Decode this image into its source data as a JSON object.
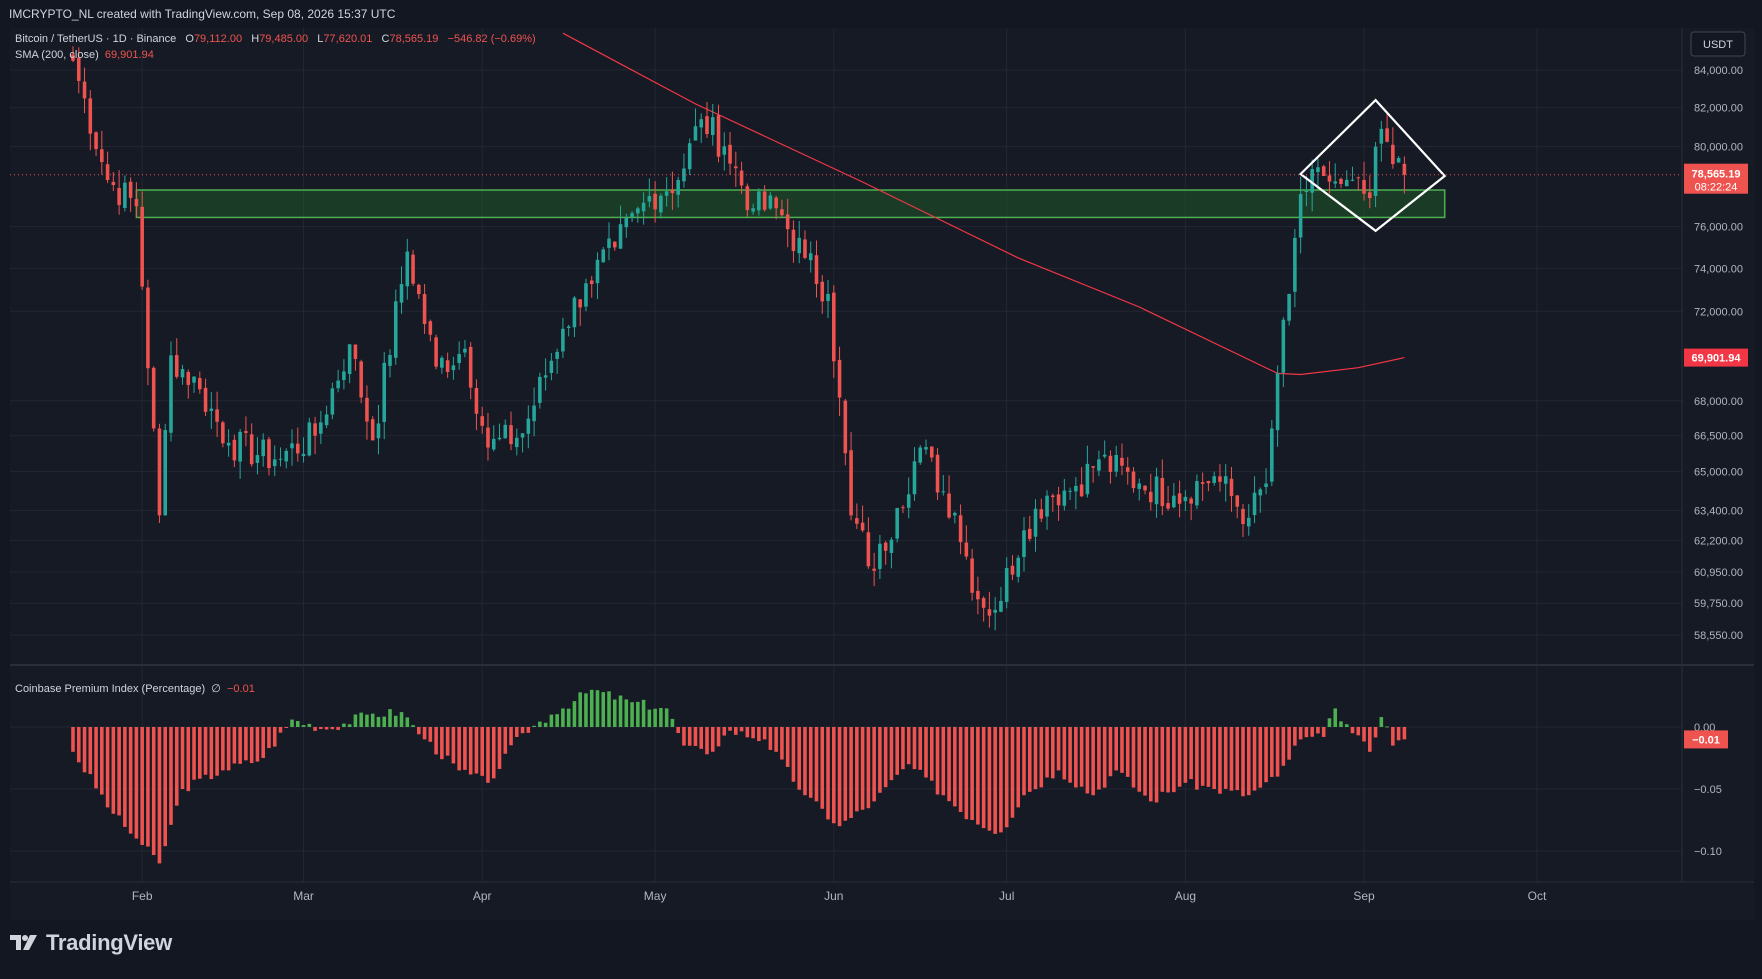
{
  "header": {
    "credit": "IMCRYPTO_NL created with TradingView.com, Sep 08, 2026 15:37 UTC"
  },
  "legend": {
    "symbol": "Bitcoin / TetherUS · 1D · Binance",
    "o_label": "O",
    "o_value": "79,112.00",
    "h_label": "H",
    "h_value": "79,485.00",
    "l_label": "L",
    "l_value": "77,620.01",
    "c_label": "C",
    "c_value": "78,565.19",
    "change": "−546.82 (−0.69%)",
    "sma_label": "SMA (200, close)",
    "sma_value": "69,901.94"
  },
  "indicator": {
    "label": "Coinbase Premium Index (Percentage)",
    "symbol": "∅",
    "value": "−0.01"
  },
  "price_axis": {
    "currency": "USDT",
    "ticks": [
      {
        "label": "84,000.00",
        "value": 84000
      },
      {
        "label": "82,000.00",
        "value": 82000
      },
      {
        "label": "80,000.00",
        "value": 80000
      },
      {
        "label": "76,000.00",
        "value": 76000
      },
      {
        "label": "74,000.00",
        "value": 74000
      },
      {
        "label": "72,000.00",
        "value": 72000
      },
      {
        "label": "68,000.00",
        "value": 68000
      },
      {
        "label": "66,500.00",
        "value": 66500
      },
      {
        "label": "65,000.00",
        "value": 65000
      },
      {
        "label": "63,400.00",
        "value": 63400
      },
      {
        "label": "62,200.00",
        "value": 62200
      },
      {
        "label": "60,950.00",
        "value": 60950
      },
      {
        "label": "59,750.00",
        "value": 59750
      },
      {
        "label": "58,550.00",
        "value": 58550
      }
    ],
    "last_price_label": "78,565.19",
    "countdown": "08:22:24",
    "sma_label": "69,901.94"
  },
  "premium_axis": {
    "ticks": [
      {
        "label": "0.00",
        "value": 0
      },
      {
        "label": "−0.05",
        "value": -0.05
      },
      {
        "label": "−0.10",
        "value": -0.1
      }
    ],
    "current_label": "−0.01"
  },
  "time_axis": {
    "labels": [
      "Feb",
      "Mar",
      "Apr",
      "May",
      "Jun",
      "Jul",
      "Aug",
      "Sep",
      "Oct"
    ]
  },
  "colors": {
    "up": "#26a69a",
    "down": "#ef5350",
    "sma": "#f23645",
    "zone_fill": "#1f5a2a",
    "zone_stroke": "#4caf50",
    "premium_up": "#4caf50",
    "premium_down": "#ef5350",
    "pattern": "#ffffff"
  },
  "footer": {
    "brand": "TradingView"
  },
  "chart_data": [
    {
      "type": "candlestick",
      "title": "Bitcoin / TetherUS · 1D · Binance",
      "x_range": [
        "2026-01-20",
        "2026-10-05"
      ],
      "ylim": [
        57500,
        85500
      ],
      "y_scale": "log",
      "anchors": [
        {
          "date": "2026-01-20",
          "close": 84500
        },
        {
          "date": "2026-01-26",
          "close": 78300
        },
        {
          "date": "2026-01-31",
          "close": 77000
        },
        {
          "date": "2026-02-04",
          "close": 63200
        },
        {
          "date": "2026-02-06",
          "close": 70000
        },
        {
          "date": "2026-02-11",
          "close": 68500
        },
        {
          "date": "2026-02-16",
          "close": 66200
        },
        {
          "date": "2026-02-24",
          "close": 65500
        },
        {
          "date": "2026-03-03",
          "close": 66500
        },
        {
          "date": "2026-03-09",
          "close": 70500
        },
        {
          "date": "2026-03-13",
          "close": 66300
        },
        {
          "date": "2026-03-19",
          "close": 74800
        },
        {
          "date": "2026-03-24",
          "close": 69500
        },
        {
          "date": "2026-03-29",
          "close": 70300
        },
        {
          "date": "2026-04-02",
          "close": 66000
        },
        {
          "date": "2026-04-08",
          "close": 66600
        },
        {
          "date": "2026-04-15",
          "close": 71200
        },
        {
          "date": "2026-04-19",
          "close": 73300
        },
        {
          "date": "2026-04-24",
          "close": 75000
        },
        {
          "date": "2026-04-30",
          "close": 77500
        },
        {
          "date": "2026-05-05",
          "close": 78300
        },
        {
          "date": "2026-05-09",
          "close": 81400
        },
        {
          "date": "2026-05-13",
          "close": 80000
        },
        {
          "date": "2026-05-18",
          "close": 76900
        },
        {
          "date": "2026-05-22",
          "close": 76900
        },
        {
          "date": "2026-05-27",
          "close": 74500
        },
        {
          "date": "2026-05-31",
          "close": 72800
        },
        {
          "date": "2026-06-04",
          "close": 63200
        },
        {
          "date": "2026-06-08",
          "close": 61000
        },
        {
          "date": "2026-06-12",
          "close": 63500
        },
        {
          "date": "2026-06-16",
          "close": 66000
        },
        {
          "date": "2026-06-22",
          "close": 63300
        },
        {
          "date": "2026-06-26",
          "close": 59900
        },
        {
          "date": "2026-06-29",
          "close": 59500
        },
        {
          "date": "2026-07-04",
          "close": 62600
        },
        {
          "date": "2026-07-08",
          "close": 64000
        },
        {
          "date": "2026-07-13",
          "close": 64400
        },
        {
          "date": "2026-07-17",
          "close": 65500
        },
        {
          "date": "2026-07-24",
          "close": 64500
        },
        {
          "date": "2026-07-30",
          "close": 64000
        },
        {
          "date": "2026-08-06",
          "close": 64800
        },
        {
          "date": "2026-08-12",
          "close": 63100
        },
        {
          "date": "2026-08-15",
          "close": 64500
        },
        {
          "date": "2026-08-17",
          "close": 69200
        },
        {
          "date": "2026-08-19",
          "close": 72800
        },
        {
          "date": "2026-08-21",
          "close": 77600
        },
        {
          "date": "2026-08-25",
          "close": 78500
        },
        {
          "date": "2026-08-28",
          "close": 78100
        },
        {
          "date": "2026-09-02",
          "close": 77400
        },
        {
          "date": "2026-09-04",
          "close": 80900
        },
        {
          "date": "2026-09-06",
          "close": 79100
        },
        {
          "date": "2026-09-08",
          "close": 78565.19
        }
      ],
      "last": {
        "open": 79112.0,
        "high": 79485.0,
        "low": 77620.01,
        "close": 78565.19
      },
      "sma200": [
        {
          "date": "2026-04-15",
          "value": 86000
        },
        {
          "date": "2026-05-08",
          "value": 82200
        },
        {
          "date": "2026-06-06",
          "value": 78200
        },
        {
          "date": "2026-07-03",
          "value": 74500
        },
        {
          "date": "2026-07-24",
          "value": 72200
        },
        {
          "date": "2026-08-17",
          "value": 69200
        },
        {
          "date": "2026-08-21",
          "value": 69150
        },
        {
          "date": "2026-08-31",
          "value": 69450
        },
        {
          "date": "2026-09-08",
          "value": 69901.94
        }
      ],
      "support_zone": {
        "from": "2026-01-31",
        "to": "2026-09-15",
        "low": 76450,
        "high": 77800
      },
      "annotation": {
        "type": "diamond",
        "points": [
          {
            "date": "2026-08-21",
            "value": 78600
          },
          {
            "date": "2026-09-03",
            "value": 82400
          },
          {
            "date": "2026-09-15",
            "value": 78500
          },
          {
            "date": "2026-09-03",
            "value": 75800
          }
        ]
      }
    },
    {
      "type": "bar",
      "title": "Coinbase Premium Index (Percentage)",
      "ylim": [
        -0.13,
        0.035
      ],
      "anchors": [
        {
          "date": "2026-01-20",
          "value": -0.02
        },
        {
          "date": "2026-01-27",
          "value": -0.07
        },
        {
          "date": "2026-01-31",
          "value": -0.09
        },
        {
          "date": "2026-02-04",
          "value": -0.11
        },
        {
          "date": "2026-02-08",
          "value": -0.05
        },
        {
          "date": "2026-02-15",
          "value": -0.035
        },
        {
          "date": "2026-02-22",
          "value": -0.025
        },
        {
          "date": "2026-02-27",
          "value": 0.006
        },
        {
          "date": "2026-03-05",
          "value": -0.002
        },
        {
          "date": "2026-03-12",
          "value": 0.01
        },
        {
          "date": "2026-03-18",
          "value": 0.012
        },
        {
          "date": "2026-03-22",
          "value": -0.01
        },
        {
          "date": "2026-03-28",
          "value": -0.035
        },
        {
          "date": "2026-04-02",
          "value": -0.045
        },
        {
          "date": "2026-04-08",
          "value": -0.005
        },
        {
          "date": "2026-04-13",
          "value": 0.01
        },
        {
          "date": "2026-04-20",
          "value": 0.03
        },
        {
          "date": "2026-04-27",
          "value": 0.02
        },
        {
          "date": "2026-05-03",
          "value": 0.015
        },
        {
          "date": "2026-05-06",
          "value": -0.015
        },
        {
          "date": "2026-05-10",
          "value": -0.022
        },
        {
          "date": "2026-05-14",
          "value": -0.003
        },
        {
          "date": "2026-05-20",
          "value": -0.01
        },
        {
          "date": "2026-05-27",
          "value": -0.055
        },
        {
          "date": "2026-06-02",
          "value": -0.08
        },
        {
          "date": "2026-06-08",
          "value": -0.06
        },
        {
          "date": "2026-06-14",
          "value": -0.03
        },
        {
          "date": "2026-06-20",
          "value": -0.055
        },
        {
          "date": "2026-06-25",
          "value": -0.075
        },
        {
          "date": "2026-06-30",
          "value": -0.085
        },
        {
          "date": "2026-07-04",
          "value": -0.055
        },
        {
          "date": "2026-07-10",
          "value": -0.035
        },
        {
          "date": "2026-07-16",
          "value": -0.055
        },
        {
          "date": "2026-07-20",
          "value": -0.035
        },
        {
          "date": "2026-07-26",
          "value": -0.06
        },
        {
          "date": "2026-08-01",
          "value": -0.045
        },
        {
          "date": "2026-08-06",
          "value": -0.05
        },
        {
          "date": "2026-08-12",
          "value": -0.055
        },
        {
          "date": "2026-08-17",
          "value": -0.04
        },
        {
          "date": "2026-08-21",
          "value": -0.01
        },
        {
          "date": "2026-08-25",
          "value": -0.008
        },
        {
          "date": "2026-08-27",
          "value": 0.015
        },
        {
          "date": "2026-08-30",
          "value": -0.005
        },
        {
          "date": "2026-09-02",
          "value": -0.02
        },
        {
          "date": "2026-09-04",
          "value": 0.008
        },
        {
          "date": "2026-09-06",
          "value": -0.015
        },
        {
          "date": "2026-09-08",
          "value": -0.01
        }
      ]
    }
  ]
}
